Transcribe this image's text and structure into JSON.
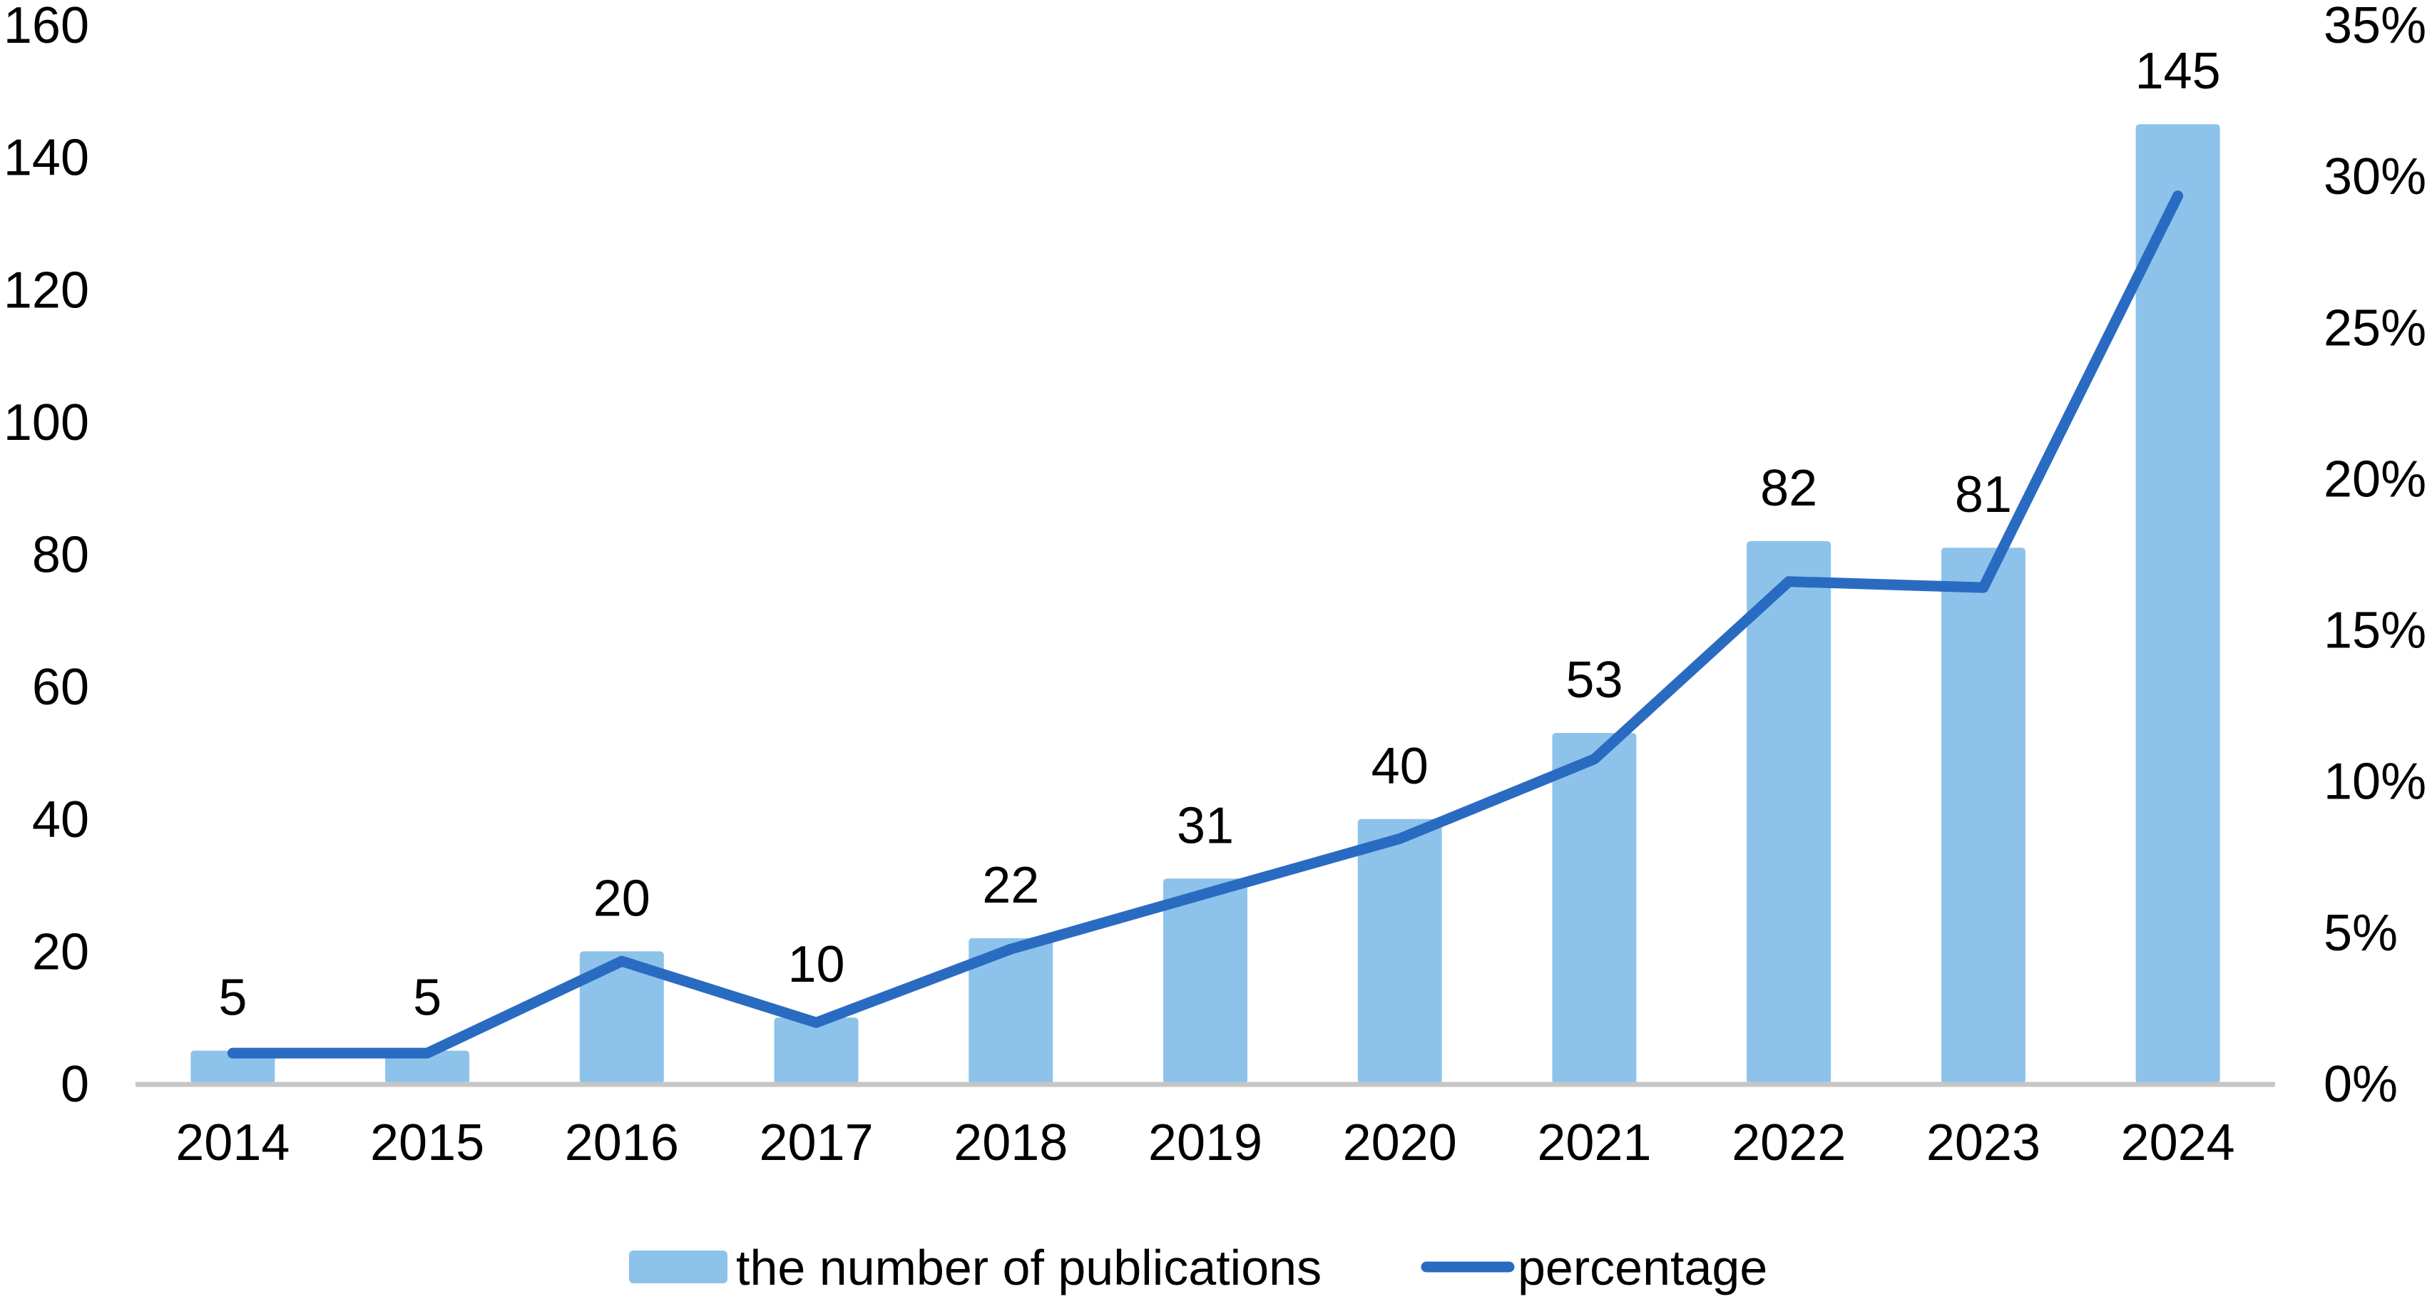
{
  "chart_data": {
    "type": "combo-bar-line",
    "categories": [
      "2014",
      "2015",
      "2016",
      "2017",
      "2018",
      "2019",
      "2020",
      "2021",
      "2022",
      "2023",
      "2024"
    ],
    "series": [
      {
        "name": "the number of publications",
        "type": "bar",
        "axis": "left",
        "color": "#8DC3EA",
        "values": [
          5,
          5,
          20,
          10,
          22,
          31,
          40,
          53,
          82,
          81,
          145
        ],
        "data_labels": [
          "5",
          "5",
          "20",
          "10",
          "22",
          "31",
          "40",
          "53",
          "82",
          "81",
          "145"
        ]
      },
      {
        "name": "percentage",
        "type": "line",
        "axis": "right",
        "color": "#2A6BC2",
        "values": [
          1.01,
          1.01,
          4.05,
          2.02,
          4.45,
          6.28,
          8.1,
          10.73,
          16.6,
          16.4,
          29.35
        ]
      }
    ],
    "left_axis": {
      "min": 0,
      "max": 160,
      "step": 20,
      "tick_labels": [
        "0",
        "20",
        "40",
        "60",
        "80",
        "100",
        "120",
        "140",
        "160"
      ]
    },
    "right_axis": {
      "min": 0,
      "max": 35,
      "step": 5,
      "tick_labels": [
        "0%",
        "5%",
        "10%",
        "15%",
        "20%",
        "25%",
        "30%",
        "35%"
      ]
    },
    "grid": false,
    "legend_position": "bottom",
    "axis_line_color": "#C6C6C6",
    "text_color": "#000000",
    "background_color": "#FFFFFF"
  }
}
